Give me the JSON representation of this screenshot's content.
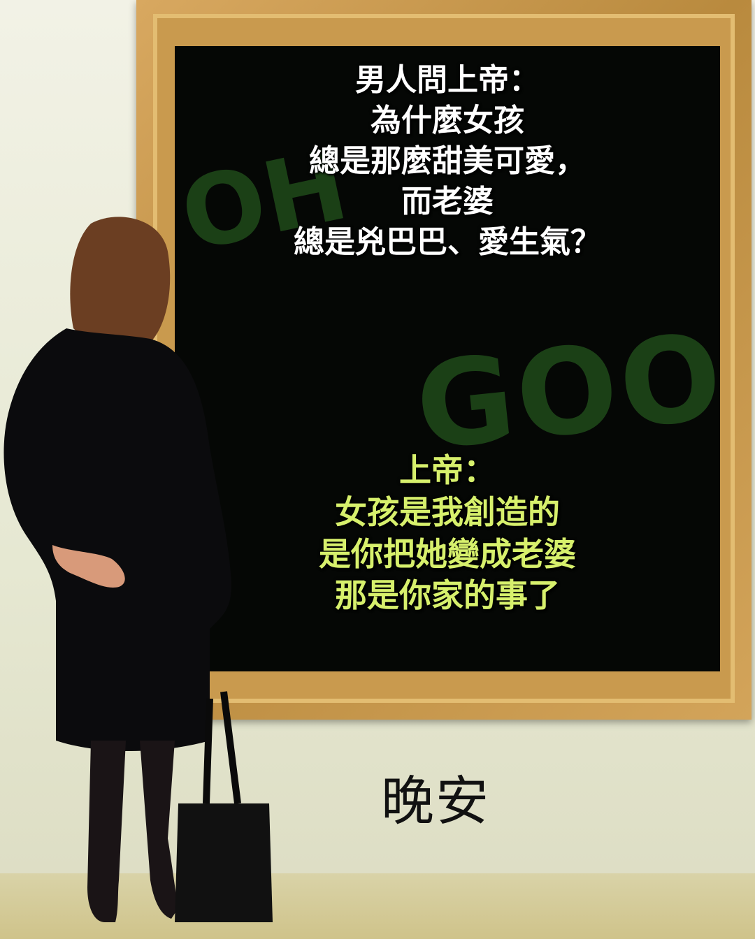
{
  "board": {
    "question_lines": [
      "男人問上帝：",
      "為什麼女孩",
      "總是那麼甜美可愛，",
      "而老婆",
      "總是兇巴巴、愛生氣？"
    ],
    "answer_lines": [
      "上帝：",
      "女孩是我創造的",
      "是你把她變成老婆",
      "那是你家的事了"
    ],
    "background_words": {
      "oh": "OH",
      "goos": "GOOS"
    }
  },
  "caption": "晚安",
  "colors": {
    "board": "#050705",
    "frame": "#c99a4e",
    "question_text": "#ffffff",
    "answer_text": "#d7f06c"
  }
}
